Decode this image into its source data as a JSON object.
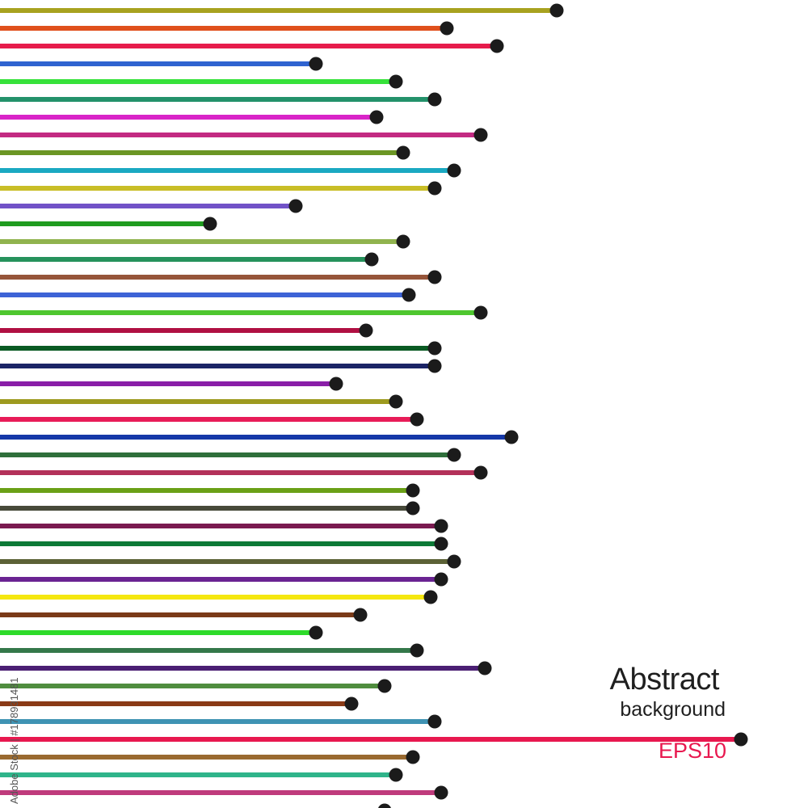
{
  "headline": "Abstract",
  "subheadline": "background",
  "format_label": "EPS10",
  "stock_watermark": "Adobe Stock | #178931481",
  "colors": {
    "background": "#ffffff",
    "dot": "#1b1b1b",
    "text": "#1f1f1f",
    "accent": "#e8184f"
  },
  "lines": [
    {
      "color": "#a8a21f",
      "end": 0.689
    },
    {
      "color": "#e0501c",
      "end": 0.553
    },
    {
      "color": "#e61b4b",
      "end": 0.615
    },
    {
      "color": "#2f63d0",
      "end": 0.391
    },
    {
      "color": "#36e23a",
      "end": 0.49
    },
    {
      "color": "#23926b",
      "end": 0.538
    },
    {
      "color": "#d924c8",
      "end": 0.466
    },
    {
      "color": "#c32a82",
      "end": 0.595
    },
    {
      "color": "#6b9624",
      "end": 0.499
    },
    {
      "color": "#1aa9c2",
      "end": 0.562
    },
    {
      "color": "#c9be27",
      "end": 0.538
    },
    {
      "color": "#7152c7",
      "end": 0.366
    },
    {
      "color": "#1f9c1f",
      "end": 0.26
    },
    {
      "color": "#90b34e",
      "end": 0.499
    },
    {
      "color": "#26925c",
      "end": 0.46
    },
    {
      "color": "#96553a",
      "end": 0.538
    },
    {
      "color": "#3d63d6",
      "end": 0.506
    },
    {
      "color": "#4ec72f",
      "end": 0.595
    },
    {
      "color": "#b01042",
      "end": 0.453
    },
    {
      "color": "#0a5a23",
      "end": 0.538
    },
    {
      "color": "#1b2466",
      "end": 0.538
    },
    {
      "color": "#8a1ea8",
      "end": 0.416
    },
    {
      "color": "#9d9a1f",
      "end": 0.49
    },
    {
      "color": "#e81c58",
      "end": 0.516
    },
    {
      "color": "#1538a8",
      "end": 0.633
    },
    {
      "color": "#2f6f3b",
      "end": 0.562
    },
    {
      "color": "#b33159",
      "end": 0.595
    },
    {
      "color": "#6aa016",
      "end": 0.511
    },
    {
      "color": "#474a3a",
      "end": 0.511
    },
    {
      "color": "#7a1a50",
      "end": 0.546
    },
    {
      "color": "#0d7a37",
      "end": 0.546
    },
    {
      "color": "#5c6236",
      "end": 0.562
    },
    {
      "color": "#6a2492",
      "end": 0.546
    },
    {
      "color": "#f5e70f",
      "end": 0.533
    },
    {
      "color": "#7a3a18",
      "end": 0.446
    },
    {
      "color": "#2ddb2a",
      "end": 0.391
    },
    {
      "color": "#34784a",
      "end": 0.516
    },
    {
      "color": "#4b1f73",
      "end": 0.6
    },
    {
      "color": "#4f8d3e",
      "end": 0.476
    },
    {
      "color": "#8a3a16",
      "end": 0.435
    },
    {
      "color": "#3f93b3",
      "end": 0.538
    },
    {
      "color": "#e8184f",
      "end": 0.917
    },
    {
      "color": "#9a6a30",
      "end": 0.511
    },
    {
      "color": "#2fb48a",
      "end": 0.49
    },
    {
      "color": "#bf3b7c",
      "end": 0.546
    },
    {
      "color": "#5bbd6a",
      "end": 0.476
    }
  ]
}
